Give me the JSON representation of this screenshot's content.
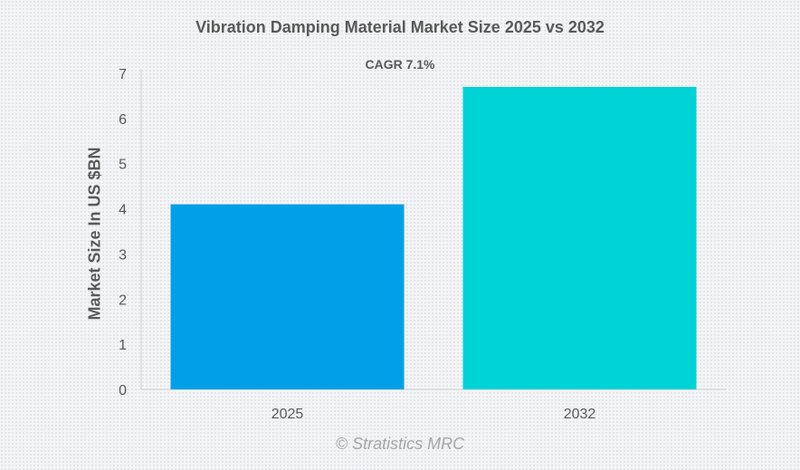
{
  "chart_data": {
    "type": "bar",
    "title": "Vibration Damping Material Market Size 2025 vs 2032",
    "subtitle": "CAGR 7.1%",
    "xlabel": "",
    "ylabel": "Market Size In US $BN",
    "categories": [
      "2025",
      "2032"
    ],
    "values": [
      4.1,
      6.7
    ],
    "colors": [
      "#009fe8",
      "#00d3d5"
    ],
    "ylim": [
      0,
      7
    ],
    "yticks": [
      0,
      1,
      2,
      3,
      4,
      5,
      6,
      7
    ],
    "grid": false,
    "legend": "none"
  },
  "credit": "© Stratistics MRC"
}
